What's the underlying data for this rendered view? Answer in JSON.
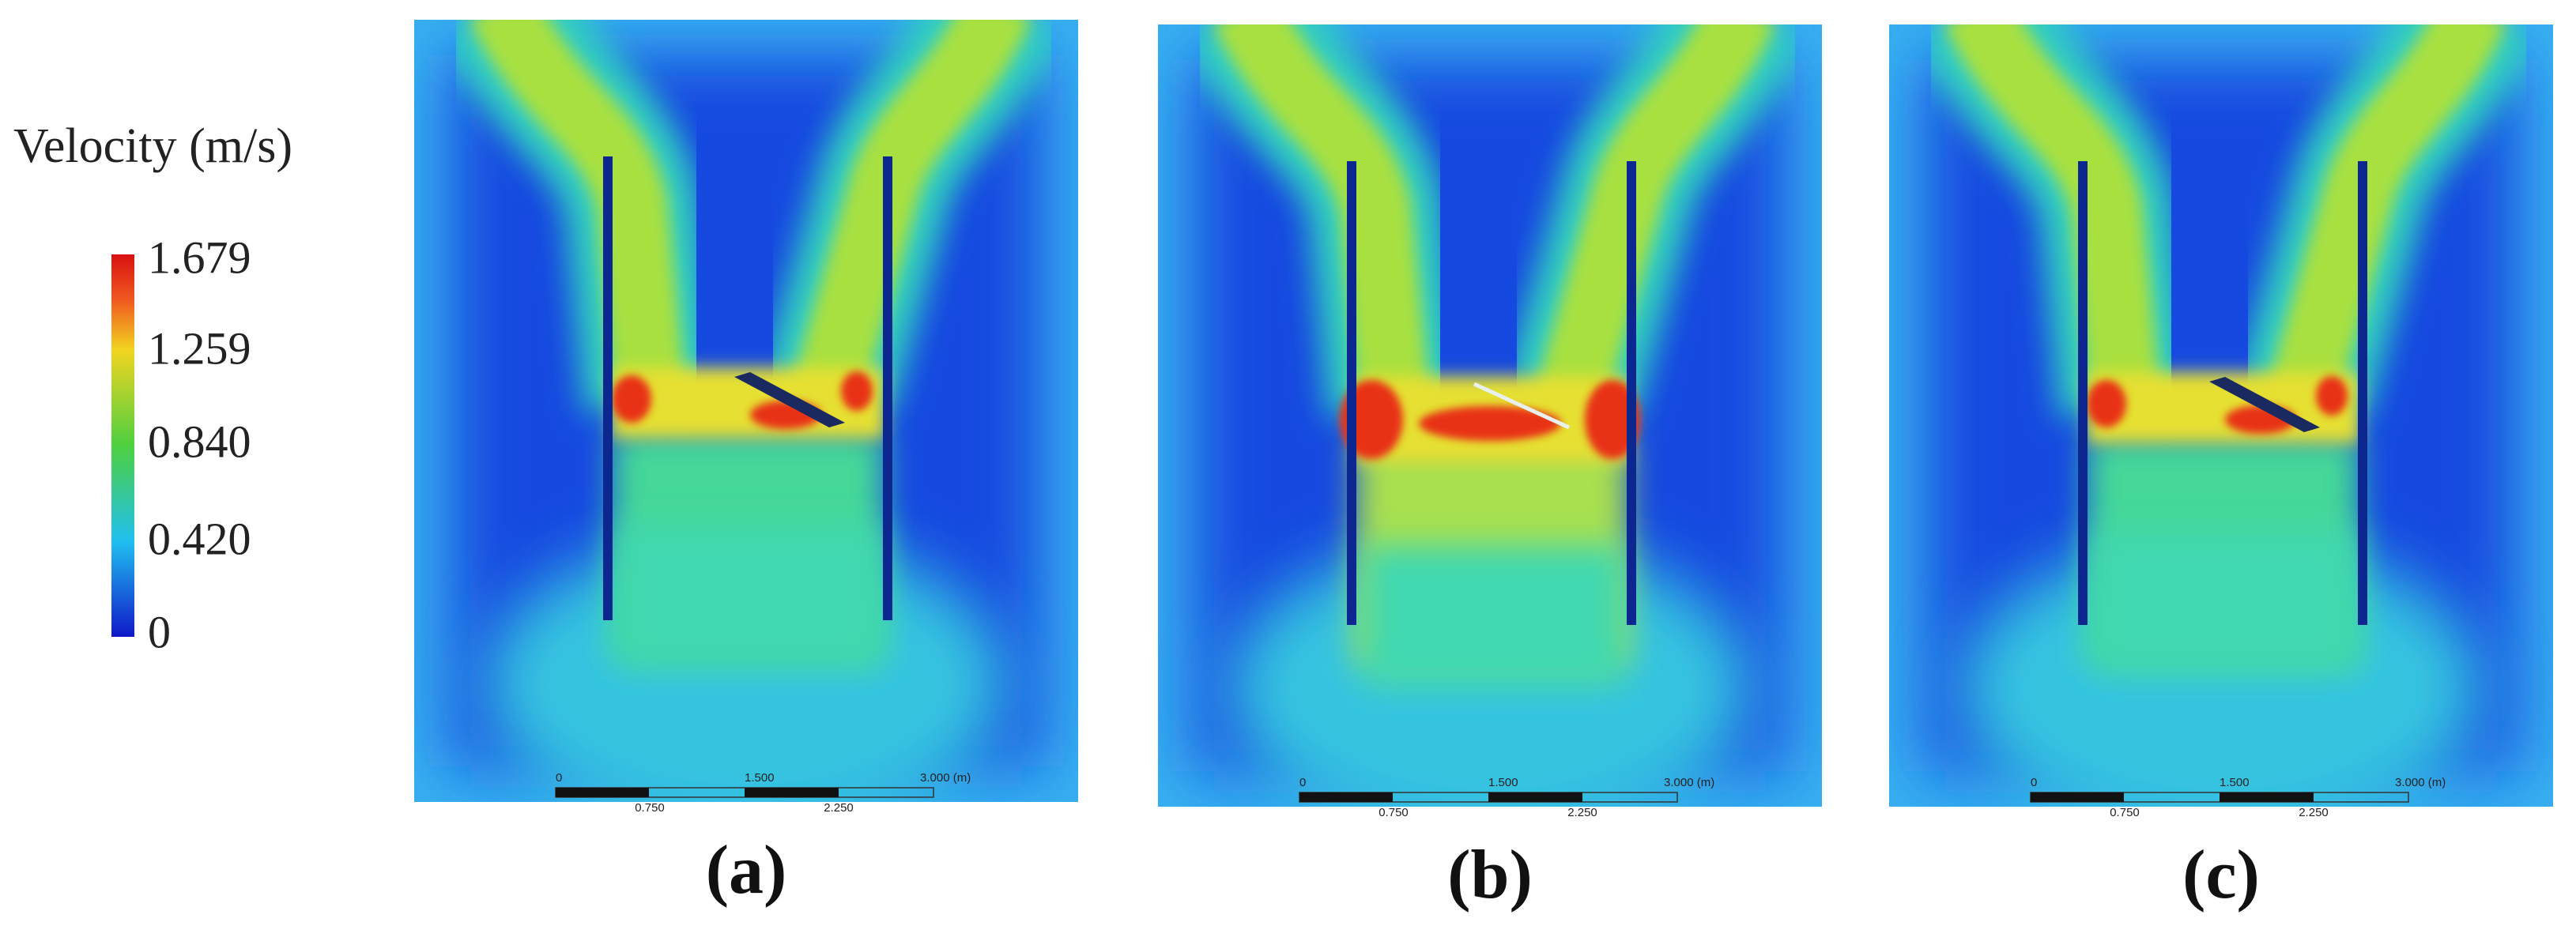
{
  "legend": {
    "title": "Velocity (m/s)",
    "ticks": [
      "1.679",
      "1.259",
      "0.840",
      "0.420",
      "0"
    ]
  },
  "panels": [
    {
      "label": "(a)",
      "scale_bar": {
        "top": [
          "0",
          "1.500",
          "3.000 (m)"
        ],
        "bottom": [
          "0.750",
          "2.250"
        ]
      }
    },
    {
      "label": "(b)",
      "scale_bar": {
        "top": [
          "0",
          "1.500",
          "3.000 (m)"
        ],
        "bottom": [
          "0.750",
          "2.250"
        ]
      }
    },
    {
      "label": "(c)",
      "scale_bar": {
        "top": [
          "0",
          "1.500",
          "3.000 (m)"
        ],
        "bottom": [
          "0.750",
          "2.250"
        ]
      }
    }
  ]
}
